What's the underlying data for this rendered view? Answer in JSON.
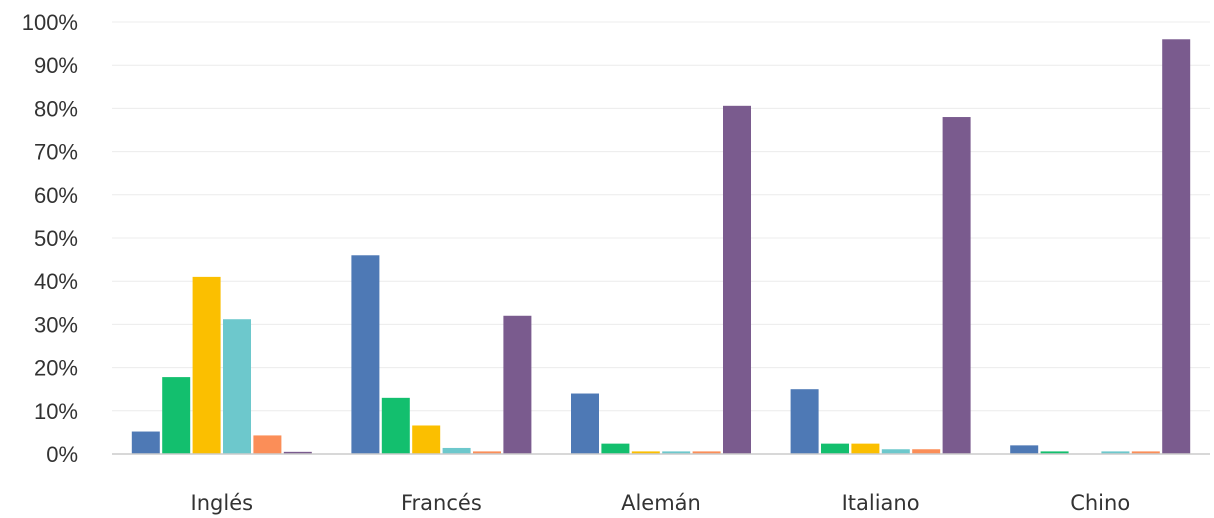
{
  "chart_data": {
    "type": "bar",
    "title": "",
    "xlabel": "",
    "ylabel": "",
    "categories": [
      "Inglés",
      "Francés",
      "Alemán",
      "Italiano",
      "Chino"
    ],
    "ylim": [
      0,
      100
    ],
    "yticks": [
      0,
      10,
      20,
      30,
      40,
      50,
      60,
      70,
      80,
      90,
      100
    ],
    "ytick_labels": [
      "0%",
      "10%",
      "20%",
      "30%",
      "40%",
      "50%",
      "60%",
      "70%",
      "80%",
      "90%",
      "100%"
    ],
    "grid": true,
    "legend": "none",
    "series": [
      {
        "color": "#4e79b5",
        "values": [
          5.2,
          46,
          14,
          15,
          2
        ]
      },
      {
        "color": "#13bf6e",
        "values": [
          17.8,
          13,
          2.4,
          2.4,
          0.6
        ]
      },
      {
        "color": "#fbbf00",
        "values": [
          41,
          6.6,
          0.6,
          2.4,
          0
        ]
      },
      {
        "color": "#6dc8cc",
        "values": [
          31.2,
          1.4,
          0.6,
          1.1,
          0.6
        ]
      },
      {
        "color": "#fb8e58",
        "values": [
          4.3,
          0.6,
          0.6,
          1.1,
          0.6
        ]
      },
      {
        "color": "#7a5b8e",
        "values": [
          0.5,
          32,
          80.6,
          78,
          96
        ]
      }
    ]
  }
}
